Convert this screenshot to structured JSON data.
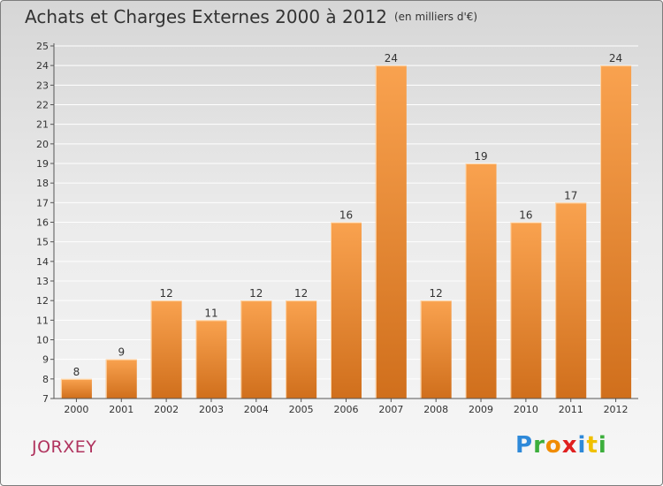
{
  "title": "Achats et Charges Externes 2000 à 2012",
  "unit": "(en milliers d'€)",
  "commune": "JORXEY",
  "logo": {
    "letters": [
      {
        "ch": "P",
        "color": "#2e89d9"
      },
      {
        "ch": "r",
        "color": "#3cae3c"
      },
      {
        "ch": "o",
        "color": "#f08c00"
      },
      {
        "ch": "x",
        "color": "#e02020"
      },
      {
        "ch": "i",
        "color": "#2e89d9"
      },
      {
        "ch": "t",
        "color": "#f0c000"
      },
      {
        "ch": "i",
        "color": "#3cae3c"
      }
    ]
  },
  "colors": {
    "bar_light": "#f9a24f",
    "bar_dark": "#d06f1c",
    "grid": "#ffffff",
    "axis": "#555555"
  },
  "chart_data": {
    "type": "bar",
    "categories": [
      "2000",
      "2001",
      "2002",
      "2003",
      "2004",
      "2005",
      "2006",
      "2007",
      "2008",
      "2009",
      "2010",
      "2011",
      "2012"
    ],
    "values": [
      8,
      9,
      12,
      11,
      12,
      12,
      16,
      24,
      12,
      19,
      16,
      17,
      24
    ],
    "ylim": [
      7,
      25
    ],
    "yticks": [
      7,
      8,
      9,
      10,
      11,
      12,
      13,
      14,
      15,
      16,
      17,
      18,
      19,
      20,
      21,
      22,
      23,
      24,
      25
    ],
    "grid": true,
    "data_labels": true
  }
}
